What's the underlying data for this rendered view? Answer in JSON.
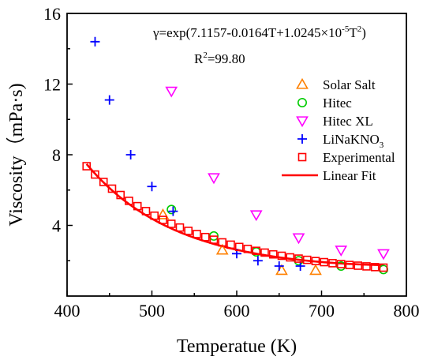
{
  "chart_data": {
    "type": "scatter",
    "xlabel": "Temperatue (K)",
    "ylabel": "Viscosity（mPa·s)",
    "xlim": [
      400,
      800
    ],
    "ylim": [
      0,
      16
    ],
    "xticks": [
      400,
      500,
      600,
      700,
      800
    ],
    "yticks": [
      4,
      8,
      12,
      16
    ],
    "tick_labels_x": [
      "400",
      "500",
      "600",
      "700",
      "800"
    ],
    "tick_labels_y": [
      "4",
      "8",
      "12",
      "16"
    ],
    "annotation": {
      "equation_prefix": "γ=exp(7.1157-0.0164T+1.0245×10",
      "equation_exp": "-5",
      "equation_mid": "T",
      "equation_exp2": "2",
      "equation_suffix": ")",
      "r2_prefix": "R",
      "r2_exp": "2",
      "r2_suffix": "=99.80"
    },
    "legend_position": "right",
    "series": [
      {
        "name": "Solar Salt",
        "marker": "triangle-up",
        "color": "#ff8000",
        "x": [
          513,
          583,
          653,
          693
        ],
        "y": [
          4.6,
          2.6,
          1.45,
          1.45
        ]
      },
      {
        "name": "Hitec",
        "marker": "circle",
        "color": "#00cc00",
        "x": [
          523,
          573,
          623,
          673,
          723,
          773
        ],
        "y": [
          4.9,
          3.4,
          2.5,
          2.0,
          1.7,
          1.5
        ]
      },
      {
        "name": "Hitec XL",
        "marker": "triangle-down",
        "color": "#ff00ff",
        "x": [
          523,
          573,
          623,
          673,
          723,
          773
        ],
        "y": [
          11.6,
          6.7,
          4.6,
          3.3,
          2.6,
          2.4
        ]
      },
      {
        "name": "LiNaKNO",
        "name_sub": "3",
        "marker": "plus",
        "color": "#0000ff",
        "x": [
          433,
          450,
          475,
          500,
          525,
          600,
          625,
          650,
          675
        ],
        "y": [
          14.4,
          11.1,
          8.0,
          6.2,
          4.8,
          2.4,
          2.0,
          1.7,
          1.7
        ]
      },
      {
        "name": "Experimental",
        "marker": "square",
        "color": "#ff0000",
        "x": [
          423,
          433,
          443,
          453,
          463,
          473,
          483,
          493,
          503,
          513,
          523,
          533,
          543,
          553,
          563,
          573,
          583,
          593,
          603,
          613,
          623,
          633,
          643,
          653,
          663,
          673,
          683,
          693,
          703,
          713,
          723,
          733,
          743,
          753,
          763,
          773
        ],
        "y": [
          7.35,
          6.88,
          6.46,
          6.08,
          5.72,
          5.39,
          5.09,
          4.81,
          4.55,
          4.31,
          4.09,
          3.88,
          3.69,
          3.51,
          3.34,
          3.19,
          3.04,
          2.91,
          2.78,
          2.67,
          2.56,
          2.46,
          2.36,
          2.28,
          2.19,
          2.12,
          2.05,
          1.98,
          1.92,
          1.86,
          1.81,
          1.76,
          1.72,
          1.68,
          1.64,
          1.61
        ]
      },
      {
        "name": "Linear Fit",
        "marker": "line",
        "color": "#ff0000",
        "fit": {
          "a": 7.1157,
          "b": -0.0164,
          "c": 1.0245e-05,
          "x_from": 423,
          "x_to": 773
        }
      }
    ]
  }
}
